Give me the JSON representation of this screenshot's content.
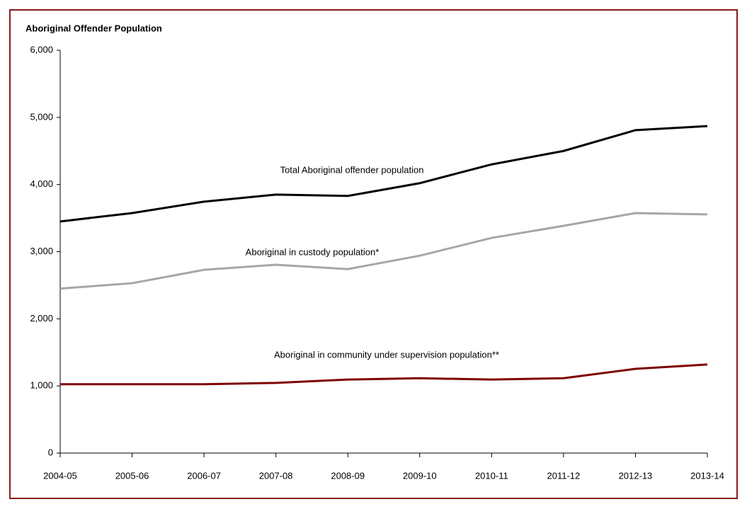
{
  "chart_data": {
    "type": "line",
    "title": "Aboriginal Offender Population",
    "categories": [
      "2004-05",
      "2005-06",
      "2006-07",
      "2007-08",
      "2008-09",
      "2009-10",
      "2010-11",
      "2011-12",
      "2012-13",
      "2013-14"
    ],
    "series": [
      {
        "name": "Total Aboriginal offender population",
        "color": "#000000",
        "values": [
          3450,
          3575,
          3745,
          3850,
          3830,
          4020,
          4300,
          4500,
          4810,
          4870
        ]
      },
      {
        "name": "Aboriginal in custody population*",
        "color": "#a6a6a6",
        "values": [
          2450,
          2530,
          2730,
          2805,
          2740,
          2940,
          3205,
          3385,
          3575,
          3555
        ]
      },
      {
        "name": "Aboriginal in community under supervision population**",
        "color": "#7f0000",
        "values": [
          1025,
          1025,
          1025,
          1045,
          1095,
          1115,
          1095,
          1115,
          1255,
          1320
        ]
      }
    ],
    "ylim": [
      0,
      6000
    ],
    "yticks": [
      0,
      {
        "value": 1000,
        "label": "1,000"
      },
      {
        "value": 2000,
        "label": "2,000"
      },
      {
        "value": 3000,
        "label": "3,000"
      },
      {
        "value": 4000,
        "label": "4,000"
      },
      {
        "value": 5000,
        "label": "5,000"
      },
      {
        "value": 6000,
        "label": "6,000"
      }
    ],
    "grid": false
  }
}
